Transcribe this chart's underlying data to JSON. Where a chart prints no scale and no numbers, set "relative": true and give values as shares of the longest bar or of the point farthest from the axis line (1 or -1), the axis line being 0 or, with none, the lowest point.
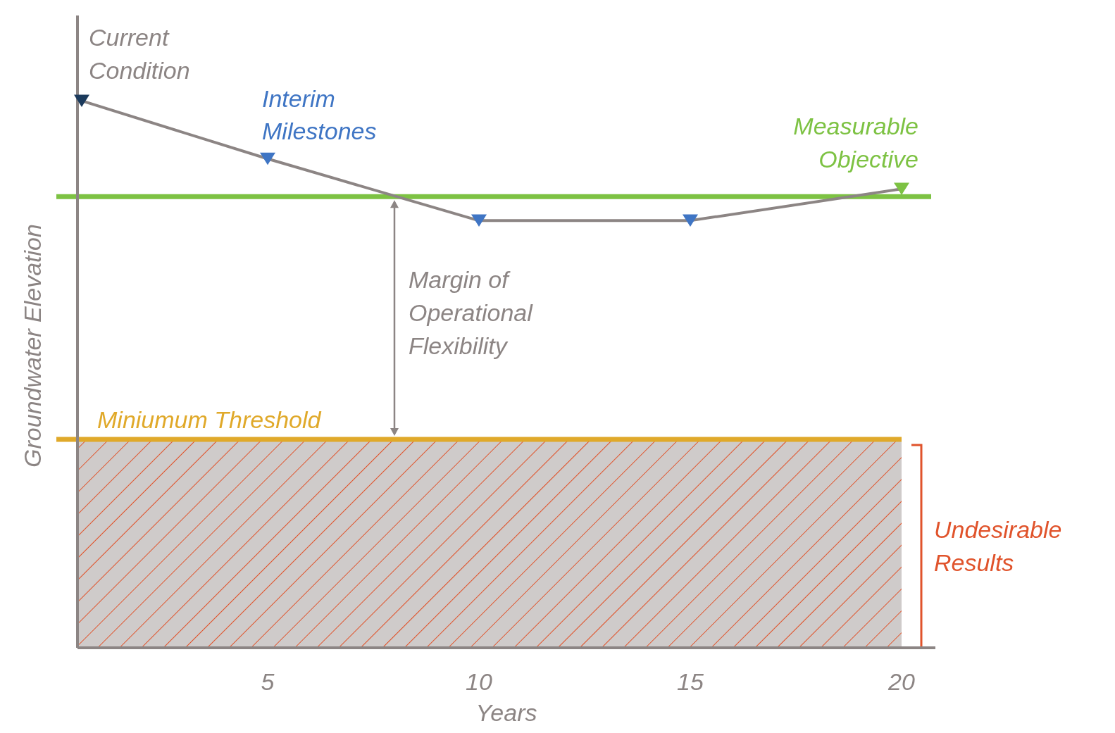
{
  "chart_data": {
    "type": "line",
    "relative": true,
    "xlabel": "Years",
    "ylabel": "Groundwater Elevation",
    "x": [
      0.6,
      5,
      10,
      15,
      20
    ],
    "xlim": [
      0.5,
      20.8
    ],
    "xticks": [
      5,
      10,
      15,
      20
    ],
    "series": [
      {
        "color": "#8c8584",
        "values": [
          1,
          0.894,
          0.781,
          0.781,
          0.839
        ],
        "colors": [
          "#1b3a5c",
          "#3f75c4",
          "#3f75c4",
          "#3f75c4",
          "#7dc243"
        ]
      }
    ],
    "marker": "triangle",
    "grid": false,
    "ref_lines": [
      {
        "axis": "y",
        "value": 0.825,
        "label": "Measurable Objective",
        "color": "#7dc243"
      },
      {
        "axis": "y",
        "value": 0.381,
        "label": "Miniumum Threshold",
        "color": "#e0a92a"
      }
    ],
    "bands": [
      {
        "axis": "y",
        "from": 0,
        "to": 0.381,
        "label": "Undesirable Results",
        "color": "#e0532b"
      }
    ],
    "annotations": [
      {
        "text": "Current Condition",
        "x": 0.6,
        "y": 1
      },
      {
        "text": "Interim Milestones",
        "x": 5,
        "y": 0.894
      },
      "Margin of Operational Flexibility"
    ]
  }
}
